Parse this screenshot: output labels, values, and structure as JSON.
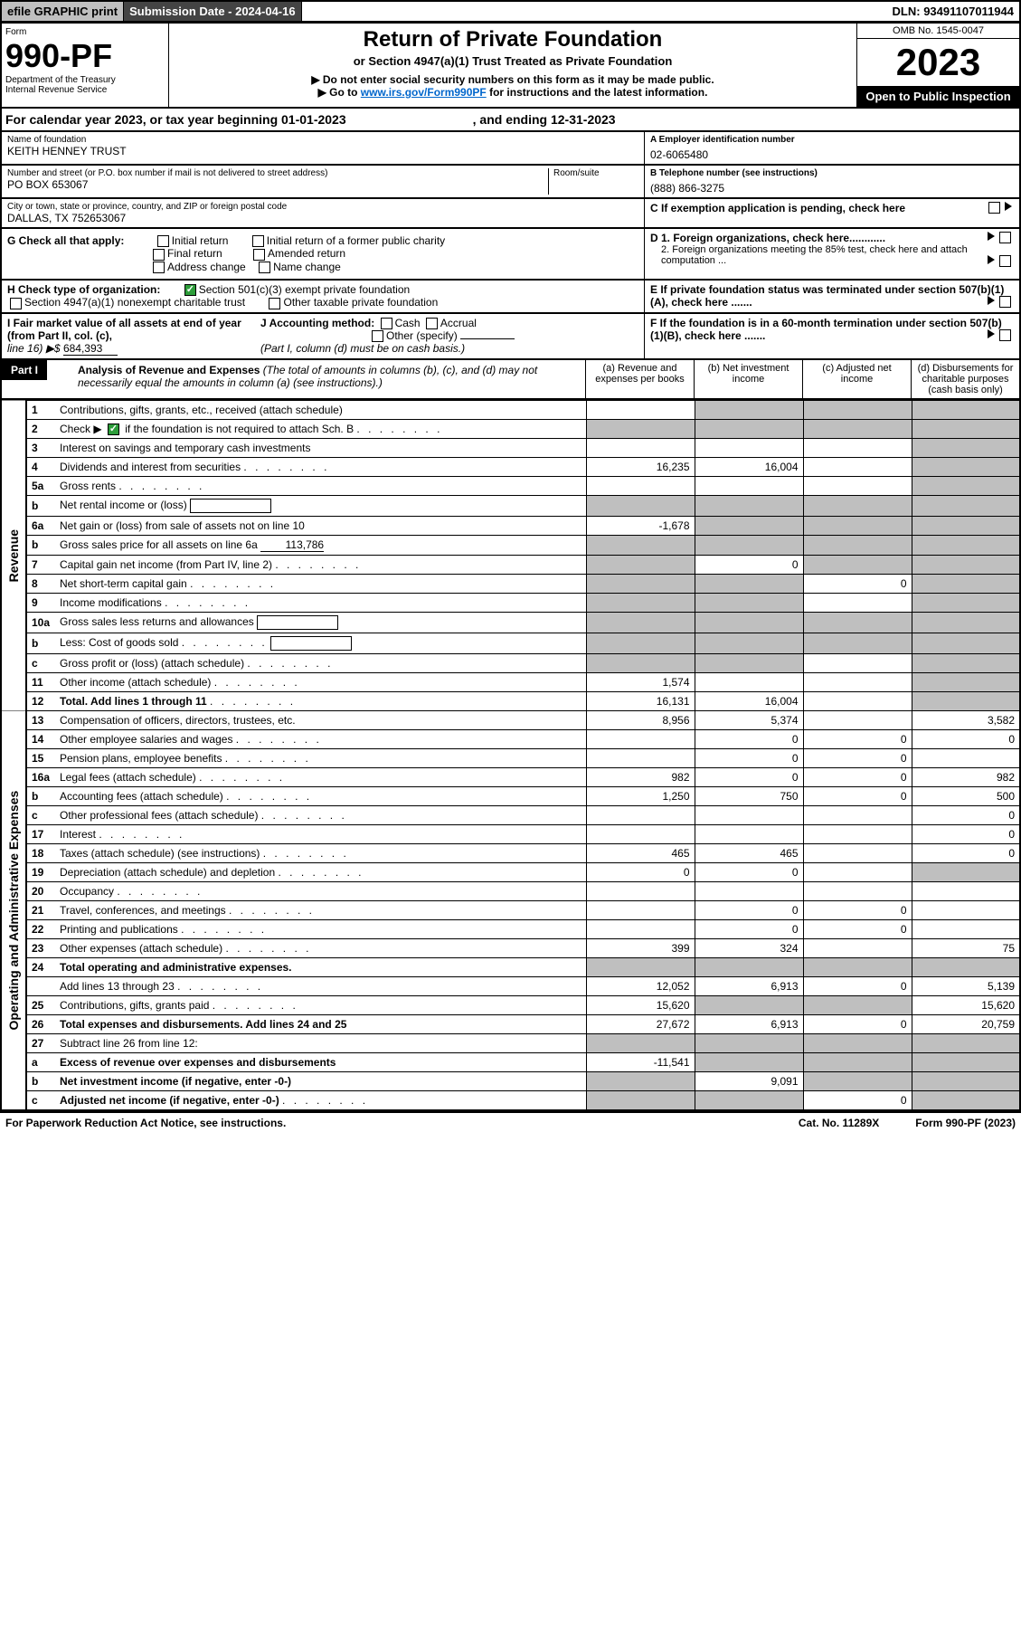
{
  "top": {
    "efile": "efile GRAPHIC print",
    "subDate": "Submission Date - 2024-04-16",
    "dln": "DLN: 93491107011944"
  },
  "hdr": {
    "form": "Form",
    "formNum": "990-PF",
    "dept": "Department of the Treasury",
    "irs": "Internal Revenue Service",
    "title": "Return of Private Foundation",
    "sub": "or Section 4947(a)(1) Trust Treated as Private Foundation",
    "note1": "▶ Do not enter social security numbers on this form as it may be made public.",
    "note2a": "▶ Go to ",
    "note2link": "www.irs.gov/Form990PF",
    "note2b": " for instructions and the latest information.",
    "omb": "OMB No. 1545-0047",
    "year": "2023",
    "open": "Open to Public Inspection"
  },
  "cal": {
    "a": "For calendar year 2023, or tax year beginning 01-01-2023",
    "b": ", and ending 12-31-2023"
  },
  "name": {
    "lbl": "Name of foundation",
    "val": "KEITH HENNEY TRUST"
  },
  "ein": {
    "lbl": "A Employer identification number",
    "val": "02-6065480"
  },
  "addr": {
    "lbl": "Number and street (or P.O. box number if mail is not delivered to street address)",
    "rm": "Room/suite",
    "val": "PO BOX 653067"
  },
  "tel": {
    "lbl": "B Telephone number (see instructions)",
    "val": "(888) 866-3275"
  },
  "city": {
    "lbl": "City or town, state or province, country, and ZIP or foreign postal code",
    "val": "DALLAS, TX  752653067"
  },
  "c": "C If exemption application is pending, check here",
  "g": {
    "lbl": "G Check all that apply:",
    "i1": "Initial return",
    "i2": "Initial return of a former public charity",
    "f": "Final return",
    "a": "Amended return",
    "ac": "Address change",
    "n": "Name change"
  },
  "d": {
    "d1": "D 1. Foreign organizations, check here............",
    "d2": "2. Foreign organizations meeting the 85% test, check here and attach computation ..."
  },
  "h": {
    "lbl": "H Check type of organization:",
    "s1": "Section 501(c)(3) exempt private foundation",
    "s2": "Section 4947(a)(1) nonexempt charitable trust",
    "s3": "Other taxable private foundation"
  },
  "e": "E If private foundation status was terminated under section 507(b)(1)(A), check here .......",
  "i": {
    "lbl": "I Fair market value of all assets at end of year (from Part II, col. (c),",
    "line": "line 16) ▶$",
    "val": "684,393"
  },
  "j": {
    "lbl": "J Accounting method:",
    "cash": "Cash",
    "acc": "Accrual",
    "other": "Other (specify)",
    "note": "(Part I, column (d) must be on cash basis.)"
  },
  "f": "F If the foundation is in a 60-month termination under section 507(b)(1)(B), check here .......",
  "part1": {
    "hdr": "Part I",
    "title": "Analysis of Revenue and Expenses",
    "note": "(The total of amounts in columns (b), (c), and (d) may not necessarily equal the amounts in column (a) (see instructions).)",
    "cols": [
      "(a) Revenue and expenses per books",
      "(b) Net investment income",
      "(c) Adjusted net income",
      "(d) Disbursements for charitable purposes (cash basis only)"
    ]
  },
  "sideRev": "Revenue",
  "sideExp": "Operating and Administrative Expenses",
  "rows": [
    {
      "n": "1",
      "d": "Contributions, gifts, grants, etc., received (attach schedule)",
      "a": "",
      "b": "g",
      "c": "g",
      "dd": "g"
    },
    {
      "n": "2",
      "d": "Check ▶",
      "d2": "if the foundation is not required to attach Sch. B",
      "chk": true,
      "a": "g",
      "b": "g",
      "c": "g",
      "dd": "g",
      "dots": true
    },
    {
      "n": "3",
      "d": "Interest on savings and temporary cash investments",
      "a": "",
      "b": "",
      "c": "",
      "dd": "g"
    },
    {
      "n": "4",
      "d": "Dividends and interest from securities",
      "a": "16,235",
      "b": "16,004",
      "c": "",
      "dd": "g",
      "dots": true
    },
    {
      "n": "5a",
      "d": "Gross rents",
      "a": "",
      "b": "",
      "c": "",
      "dd": "g",
      "dots": true
    },
    {
      "n": "b",
      "d": "Net rental income or (loss)",
      "a": "g",
      "b": "g",
      "c": "g",
      "dd": "g",
      "inlineBox": true
    },
    {
      "n": "6a",
      "d": "Net gain or (loss) from sale of assets not on line 10",
      "a": "-1,678",
      "b": "g",
      "c": "g",
      "dd": "g"
    },
    {
      "n": "b",
      "d": "Gross sales price for all assets on line 6a",
      "inlineVal": "113,786",
      "a": "g",
      "b": "g",
      "c": "g",
      "dd": "g"
    },
    {
      "n": "7",
      "d": "Capital gain net income (from Part IV, line 2)",
      "a": "g",
      "b": "0",
      "c": "g",
      "dd": "g",
      "dots": true
    },
    {
      "n": "8",
      "d": "Net short-term capital gain",
      "a": "g",
      "b": "g",
      "c": "0",
      "dd": "g",
      "dots": true
    },
    {
      "n": "9",
      "d": "Income modifications",
      "a": "g",
      "b": "g",
      "c": "",
      "dd": "g",
      "dots": true
    },
    {
      "n": "10a",
      "d": "Gross sales less returns and allowances",
      "a": "g",
      "b": "g",
      "c": "g",
      "dd": "g",
      "inlineBox": true
    },
    {
      "n": "b",
      "d": "Less: Cost of goods sold",
      "a": "g",
      "b": "g",
      "c": "g",
      "dd": "g",
      "inlineBox": true,
      "dots": true
    },
    {
      "n": "c",
      "d": "Gross profit or (loss) (attach schedule)",
      "a": "g",
      "b": "g",
      "c": "",
      "dd": "g",
      "dots": true
    },
    {
      "n": "11",
      "d": "Other income (attach schedule)",
      "a": "1,574",
      "b": "",
      "c": "",
      "dd": "g",
      "dots": true
    },
    {
      "n": "12",
      "d": "Total. Add lines 1 through 11",
      "bold": true,
      "a": "16,131",
      "b": "16,004",
      "c": "",
      "dd": "g",
      "dots": true
    },
    {
      "n": "13",
      "d": "Compensation of officers, directors, trustees, etc.",
      "a": "8,956",
      "b": "5,374",
      "c": "",
      "dd": "3,582"
    },
    {
      "n": "14",
      "d": "Other employee salaries and wages",
      "a": "",
      "b": "0",
      "c": "0",
      "dd": "0",
      "dots": true
    },
    {
      "n": "15",
      "d": "Pension plans, employee benefits",
      "a": "",
      "b": "0",
      "c": "0",
      "dd": "",
      "dots": true
    },
    {
      "n": "16a",
      "d": "Legal fees (attach schedule)",
      "a": "982",
      "b": "0",
      "c": "0",
      "dd": "982",
      "dots": true
    },
    {
      "n": "b",
      "d": "Accounting fees (attach schedule)",
      "a": "1,250",
      "b": "750",
      "c": "0",
      "dd": "500",
      "dots": true
    },
    {
      "n": "c",
      "d": "Other professional fees (attach schedule)",
      "a": "",
      "b": "",
      "c": "",
      "dd": "0",
      "dots": true
    },
    {
      "n": "17",
      "d": "Interest",
      "a": "",
      "b": "",
      "c": "",
      "dd": "0",
      "dots": true
    },
    {
      "n": "18",
      "d": "Taxes (attach schedule) (see instructions)",
      "a": "465",
      "b": "465",
      "c": "",
      "dd": "0",
      "dots": true
    },
    {
      "n": "19",
      "d": "Depreciation (attach schedule) and depletion",
      "a": "0",
      "b": "0",
      "c": "",
      "dd": "g",
      "dots": true
    },
    {
      "n": "20",
      "d": "Occupancy",
      "a": "",
      "b": "",
      "c": "",
      "dd": "",
      "dots": true
    },
    {
      "n": "21",
      "d": "Travel, conferences, and meetings",
      "a": "",
      "b": "0",
      "c": "0",
      "dd": "",
      "dots": true
    },
    {
      "n": "22",
      "d": "Printing and publications",
      "a": "",
      "b": "0",
      "c": "0",
      "dd": "",
      "dots": true
    },
    {
      "n": "23",
      "d": "Other expenses (attach schedule)",
      "a": "399",
      "b": "324",
      "c": "",
      "dd": "75",
      "dots": true
    },
    {
      "n": "24",
      "d": "Total operating and administrative expenses.",
      "bold": true,
      "a": "g",
      "b": "g",
      "c": "g",
      "dd": "g"
    },
    {
      "n": "",
      "d": "Add lines 13 through 23",
      "a": "12,052",
      "b": "6,913",
      "c": "0",
      "dd": "5,139",
      "dots": true
    },
    {
      "n": "25",
      "d": "Contributions, gifts, grants paid",
      "a": "15,620",
      "b": "g",
      "c": "g",
      "dd": "15,620",
      "dots": true
    },
    {
      "n": "26",
      "d": "Total expenses and disbursements. Add lines 24 and 25",
      "bold": true,
      "a": "27,672",
      "b": "6,913",
      "c": "0",
      "dd": "20,759"
    },
    {
      "n": "27",
      "d": "Subtract line 26 from line 12:",
      "a": "g",
      "b": "g",
      "c": "g",
      "dd": "g"
    },
    {
      "n": "a",
      "d": "Excess of revenue over expenses and disbursements",
      "bold": true,
      "a": "-11,541",
      "b": "g",
      "c": "g",
      "dd": "g"
    },
    {
      "n": "b",
      "d": "Net investment income (if negative, enter -0-)",
      "bold": true,
      "a": "g",
      "b": "9,091",
      "c": "g",
      "dd": "g"
    },
    {
      "n": "c",
      "d": "Adjusted net income (if negative, enter -0-)",
      "bold": true,
      "a": "g",
      "b": "g",
      "c": "0",
      "dd": "g",
      "dots": true
    }
  ],
  "foot": {
    "a": "For Paperwork Reduction Act Notice, see instructions.",
    "b": "Cat. No. 11289X",
    "c": "Form 990-PF (2023)"
  }
}
